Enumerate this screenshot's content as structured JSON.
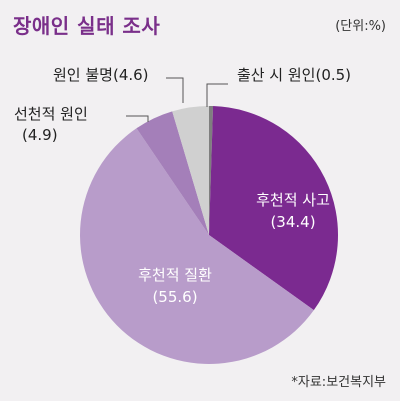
{
  "chart_data": {
    "type": "pie",
    "title": "장애인 실태 조사",
    "unit": "(단위:%)",
    "source": "*자료:보건복지부",
    "slices": [
      {
        "label": "출산 시 원인",
        "value": 0.5,
        "color": "#7f7f7f"
      },
      {
        "label": "후천적 사고",
        "value": 34.4,
        "color": "#7b2a90"
      },
      {
        "label": "후천적 질환",
        "value": 55.6,
        "color": "#b89cca"
      },
      {
        "label": "선천적 원인",
        "value": 4.9,
        "color": "#a47fb9"
      },
      {
        "label": "원인 불명",
        "value": 4.6,
        "color": "#d0d0d0"
      }
    ]
  }
}
